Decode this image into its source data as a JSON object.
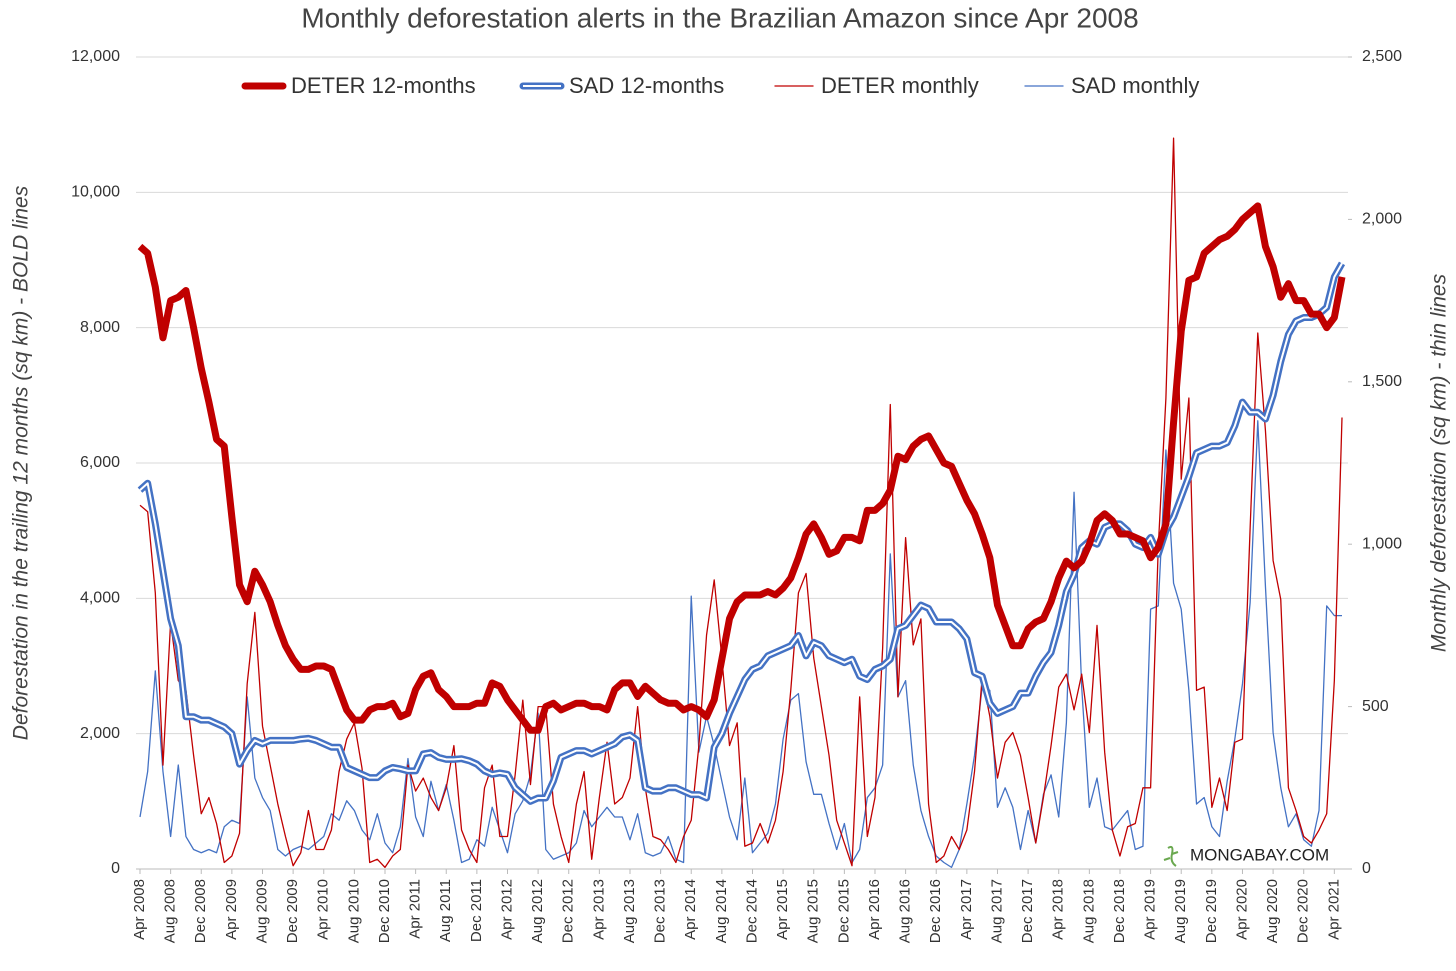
{
  "chart_data": {
    "type": "line",
    "title": "Monthly deforestation alerts in the Brazilian Amazon since Apr 2008",
    "y_label": "Deforestation in the trailing 12 months (sq km) - BOLD lines",
    "y2_label": "Monthly deforestation (sq km) - thin lines",
    "watermark": "MONGABAY.COM",
    "grid": true,
    "legend": "top",
    "ylim": [
      0,
      12000
    ],
    "yticks": [
      0,
      {
        "value": 2000,
        "label": "2,000"
      },
      {
        "value": 4000,
        "label": "4,000"
      },
      {
        "value": 6000,
        "label": "6,000"
      },
      {
        "value": 8000,
        "label": "8,000"
      },
      {
        "value": 10000,
        "label": "10,000"
      },
      {
        "value": 12000,
        "label": "12,000"
      }
    ],
    "y2lim": [
      0,
      2500
    ],
    "y2ticks": [
      0,
      500,
      {
        "value": 1000,
        "label": "1,000"
      },
      {
        "value": 1500,
        "label": "1,500"
      },
      {
        "value": 2000,
        "label": "2,000"
      },
      {
        "value": 2500,
        "label": "2,500"
      }
    ],
    "categories": [
      "Apr 2008",
      null,
      null,
      null,
      "Aug 2008",
      null,
      null,
      null,
      "Dec 2008",
      null,
      null,
      null,
      "Apr 2009",
      null,
      null,
      null,
      "Aug 2009",
      null,
      null,
      null,
      "Dec 2009",
      null,
      null,
      null,
      "Apr 2010",
      null,
      null,
      null,
      "Aug 2010",
      null,
      null,
      null,
      "Dec 2010",
      null,
      null,
      null,
      "Apr 2011",
      null,
      null,
      null,
      "Aug 2011",
      null,
      null,
      null,
      "Dec 2011",
      null,
      null,
      null,
      "Apr 2012",
      null,
      null,
      null,
      "Aug 2012",
      null,
      null,
      null,
      "Dec 2012",
      null,
      null,
      null,
      "Apr 2013",
      null,
      null,
      null,
      "Aug 2013",
      null,
      null,
      null,
      "Dec 2013",
      null,
      null,
      null,
      "Apr 2014",
      null,
      null,
      null,
      "Aug 2014",
      null,
      null,
      null,
      "Dec 2014",
      null,
      null,
      null,
      "Apr 2015",
      null,
      null,
      null,
      "Aug 2015",
      null,
      null,
      null,
      "Dec 2015",
      null,
      null,
      null,
      "Apr 2016",
      null,
      null,
      null,
      "Aug 2016",
      null,
      null,
      null,
      "Dec 2016",
      null,
      null,
      null,
      "Apr 2017",
      null,
      null,
      null,
      "Aug 2017",
      null,
      null,
      null,
      "Dec 2017",
      null,
      null,
      null,
      "Apr 2018",
      null,
      null,
      null,
      "Aug 2018",
      null,
      null,
      null,
      "Dec 2018",
      null,
      null,
      null,
      "Apr 2019",
      null,
      null,
      null,
      "Aug 2019",
      null,
      null,
      null,
      "Dec 2019",
      null,
      null,
      null,
      "Apr 2020",
      null,
      null,
      null,
      "Aug 2020",
      null,
      null,
      null,
      "Dec 2020",
      null,
      null,
      null,
      "Apr 2021",
      null
    ],
    "series": [
      {
        "name": "DETER 12-months",
        "color": "#c00000",
        "values": [
          9200,
          9100,
          8600,
          7850,
          8400,
          8450,
          8550,
          8000,
          7400,
          6900,
          6350,
          6250,
          5200,
          4200,
          3950,
          4400,
          4200,
          3950,
          3600,
          3300,
          3100,
          2950,
          2950,
          3000,
          3000,
          2950,
          2650,
          2350,
          2200,
          2200,
          2350,
          2400,
          2400,
          2450,
          2250,
          2300,
          2650,
          2850,
          2900,
          2650,
          2550,
          2400,
          2400,
          2400,
          2450,
          2450,
          2750,
          2700,
          2500,
          2350,
          2200,
          2050,
          2050,
          2400,
          2450,
          2350,
          2400,
          2450,
          2450,
          2400,
          2400,
          2350,
          2650,
          2750,
          2750,
          2550,
          2700,
          2600,
          2500,
          2450,
          2450,
          2350,
          2400,
          2350,
          2250,
          2500,
          3100,
          3700,
          3950,
          4050,
          4050,
          4050,
          4100,
          4050,
          4150,
          4300,
          4600,
          4950,
          5100,
          4900,
          4650,
          4700,
          4900,
          4900,
          4850,
          5300,
          5300,
          5400,
          5600,
          6100,
          6050,
          6250,
          6350,
          6400,
          6200,
          6000,
          5950,
          5700,
          5450,
          5250,
          4950,
          4600,
          3900,
          3600,
          3300,
          3300,
          3550,
          3650,
          3700,
          3950,
          4300,
          4550,
          4450,
          4550,
          4800,
          5150,
          5250,
          5150,
          4950,
          4950,
          4900,
          4850,
          4600,
          4750,
          5100,
          6600,
          7950,
          8700,
          8750,
          9100,
          9200,
          9300,
          9350,
          9450,
          9600,
          9700,
          9800,
          9200,
          8900,
          8450,
          8650,
          8400,
          8400,
          8200,
          8200,
          8000,
          8150,
          8750
        ]
      },
      {
        "name": "SAD 12-months",
        "color": "#4472c4",
        "values": [
          5600,
          5700,
          5100,
          4400,
          3700,
          3300,
          2250,
          2250,
          2200,
          2200,
          2150,
          2100,
          2000,
          1550,
          1750,
          1900,
          1850,
          1900,
          1900,
          1900,
          1900,
          1920,
          1930,
          1900,
          1850,
          1800,
          1800,
          1500,
          1450,
          1400,
          1350,
          1350,
          1450,
          1500,
          1480,
          1450,
          1450,
          1700,
          1720,
          1650,
          1620,
          1620,
          1630,
          1600,
          1550,
          1450,
          1400,
          1420,
          1400,
          1200,
          1100,
          1000,
          1050,
          1050,
          1300,
          1650,
          1700,
          1750,
          1750,
          1700,
          1750,
          1800,
          1850,
          1950,
          1980,
          1900,
          1200,
          1150,
          1150,
          1200,
          1200,
          1150,
          1100,
          1100,
          1050,
          1800,
          2000,
          2300,
          2550,
          2800,
          2950,
          3000,
          3150,
          3200,
          3250,
          3300,
          3450,
          3150,
          3350,
          3300,
          3150,
          3100,
          3050,
          3100,
          2850,
          2800,
          2950,
          3000,
          3100,
          3550,
          3600,
          3750,
          3900,
          3850,
          3650,
          3650,
          3650,
          3550,
          3400,
          2900,
          2850,
          2450,
          2300,
          2350,
          2400,
          2600,
          2600,
          2850,
          3050,
          3200,
          3600,
          4100,
          4350,
          4750,
          4850,
          4800,
          5050,
          5100,
          5100,
          5000,
          4800,
          4750,
          4900,
          4650,
          5000,
          5200,
          5500,
          5800,
          6150,
          6200,
          6250,
          6250,
          6300,
          6550,
          6900,
          6750,
          6750,
          6650,
          7000,
          7500,
          7900,
          8100,
          8150,
          8150,
          8200,
          8300,
          8750,
          8950
        ]
      },
      {
        "name": "DETER monthly",
        "color": "#c00000",
        "axis": "y2",
        "values": [
          1120,
          1100,
          850,
          320,
          760,
          580,
          550,
          350,
          170,
          220,
          140,
          20,
          40,
          110,
          570,
          790,
          440,
          320,
          200,
          100,
          10,
          50,
          180,
          60,
          60,
          120,
          300,
          400,
          450,
          310,
          20,
          30,
          5,
          40,
          60,
          320,
          240,
          280,
          220,
          180,
          250,
          380,
          120,
          60,
          20,
          250,
          320,
          100,
          100,
          290,
          520,
          260,
          500,
          500,
          200,
          100,
          20,
          200,
          300,
          30,
          220,
          390,
          200,
          220,
          280,
          500,
          250,
          100,
          90,
          60,
          20,
          100,
          150,
          380,
          720,
          890,
          650,
          380,
          450,
          70,
          80,
          140,
          80,
          150,
          300,
          550,
          850,
          910,
          650,
          500,
          350,
          150,
          80,
          10,
          530,
          100,
          220,
          680,
          1430,
          530,
          1020,
          690,
          770,
          200,
          20,
          40,
          100,
          60,
          120,
          300,
          590,
          470,
          280,
          390,
          420,
          350,
          220,
          80,
          220,
          380,
          560,
          600,
          490,
          600,
          420,
          750,
          360,
          120,
          40,
          130,
          140,
          250,
          250,
          990,
          1450,
          2250,
          1200,
          1450,
          550,
          560,
          190,
          280,
          180,
          390,
          400,
          1050,
          1650,
          1350,
          950,
          830,
          250,
          180,
          100,
          80,
          120,
          170,
          580,
          1390
        ]
      },
      {
        "name": "SAD monthly",
        "color": "#4472c4",
        "axis": "y2",
        "values": [
          160,
          300,
          610,
          300,
          100,
          320,
          100,
          60,
          50,
          60,
          50,
          130,
          150,
          140,
          530,
          280,
          220,
          180,
          60,
          40,
          60,
          70,
          60,
          80,
          100,
          170,
          150,
          210,
          180,
          120,
          90,
          170,
          80,
          50,
          130,
          340,
          160,
          100,
          270,
          180,
          260,
          150,
          20,
          30,
          90,
          70,
          190,
          120,
          50,
          170,
          210,
          290,
          480,
          60,
          30,
          40,
          50,
          80,
          180,
          130,
          160,
          190,
          160,
          160,
          90,
          170,
          50,
          40,
          50,
          100,
          30,
          20,
          840,
          360,
          470,
          380,
          270,
          160,
          90,
          280,
          50,
          80,
          110,
          200,
          400,
          520,
          540,
          330,
          230,
          230,
          140,
          60,
          140,
          20,
          60,
          220,
          250,
          320,
          970,
          530,
          580,
          320,
          180,
          100,
          40,
          20,
          5,
          60,
          200,
          350,
          560,
          550,
          190,
          250,
          190,
          60,
          180,
          80,
          230,
          290,
          160,
          450,
          1160,
          560,
          190,
          280,
          130,
          120,
          150,
          180,
          60,
          70,
          800,
          810,
          1290,
          880,
          800,
          550,
          200,
          220,
          130,
          100,
          270,
          400,
          570,
          820,
          1380,
          870,
          420,
          250,
          130,
          170,
          90,
          70,
          180,
          810,
          780,
          780
        ]
      }
    ]
  }
}
